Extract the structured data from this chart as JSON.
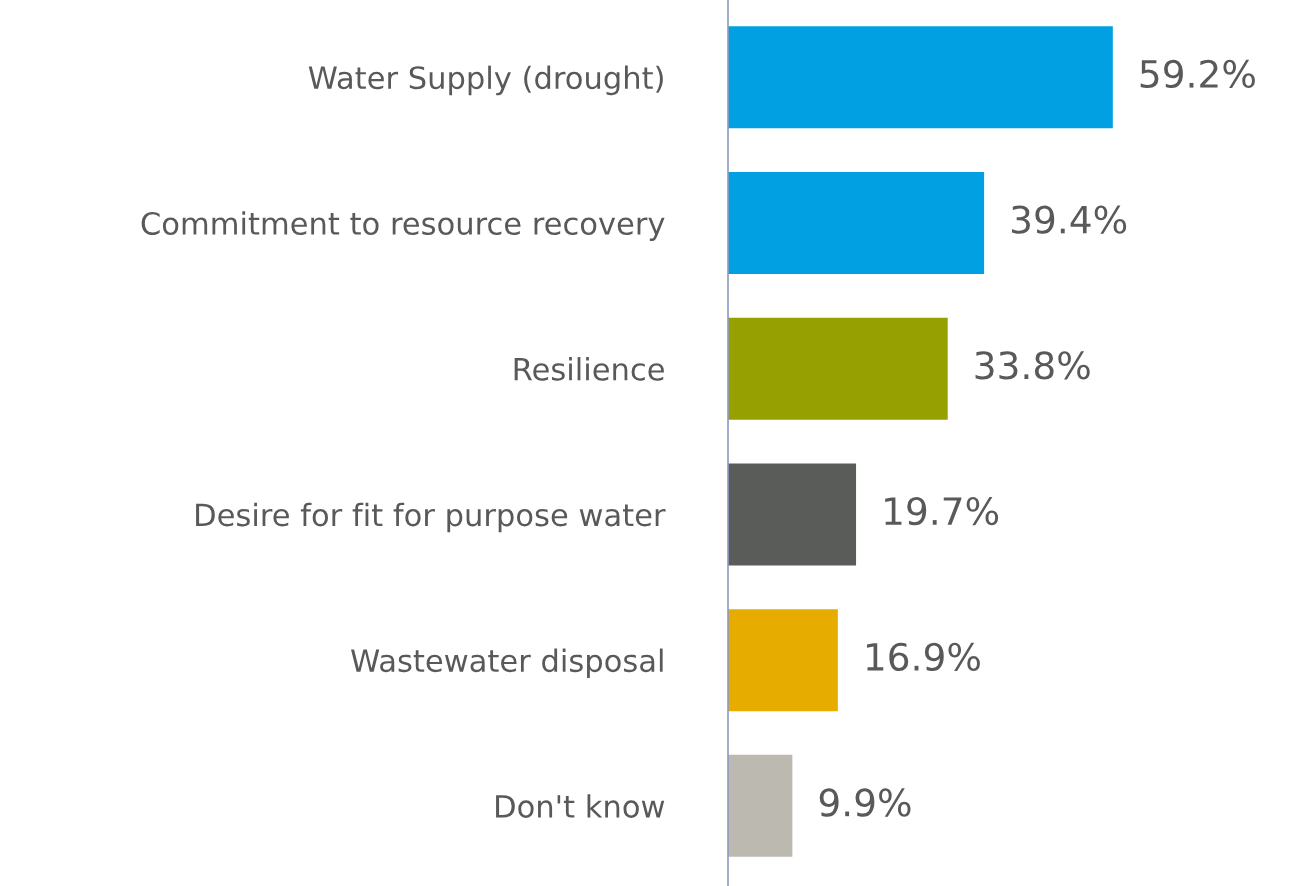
{
  "chart_data": {
    "type": "bar",
    "orientation": "horizontal",
    "categories": [
      "Water Supply (drought)",
      "Commitment to resource recovery",
      "Resilience",
      "Desire for fit for purpose water",
      "Wastewater disposal",
      "Don't know"
    ],
    "values": [
      59.2,
      39.4,
      33.8,
      19.7,
      16.9,
      9.9
    ],
    "colors": [
      "#00a0e3",
      "#00a0e3",
      "#96a000",
      "#5a5c5a",
      "#e6ac00",
      "#bcb9b1"
    ],
    "value_labels": [
      "59.2%",
      "39.4%",
      "33.8%",
      "19.7%",
      "16.9%",
      "9.9%"
    ],
    "grid": false,
    "legend": false
  }
}
